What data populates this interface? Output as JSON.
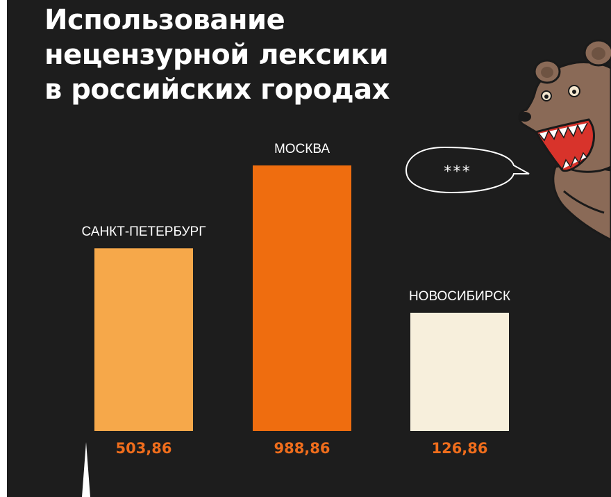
{
  "title_lines": [
    "Использование",
    "нецензурной лексики",
    "в российских городах"
  ],
  "speech_bubble": "***",
  "colors": {
    "background": "#1d1d1d",
    "value_text": "#ef6d1c",
    "bear_fur": "#8a6a57",
    "bear_mouth": "#d8332b"
  },
  "chart_data": {
    "type": "bar",
    "title": "Использование нецензурной лексики в российских городах",
    "categories": [
      "САНКТ-ПЕТЕРБУРГ",
      "МОСКВА",
      "НОВОСИБИРСК"
    ],
    "values": [
      503.86,
      988.86,
      126.86
    ],
    "value_labels": [
      "503,86",
      "988,86",
      "126,86"
    ],
    "bar_colors": [
      "#f6a84a",
      "#ef6d0f",
      "#f7efdc"
    ],
    "xlabel": "",
    "ylabel": "",
    "grid": false,
    "legend": "none"
  }
}
